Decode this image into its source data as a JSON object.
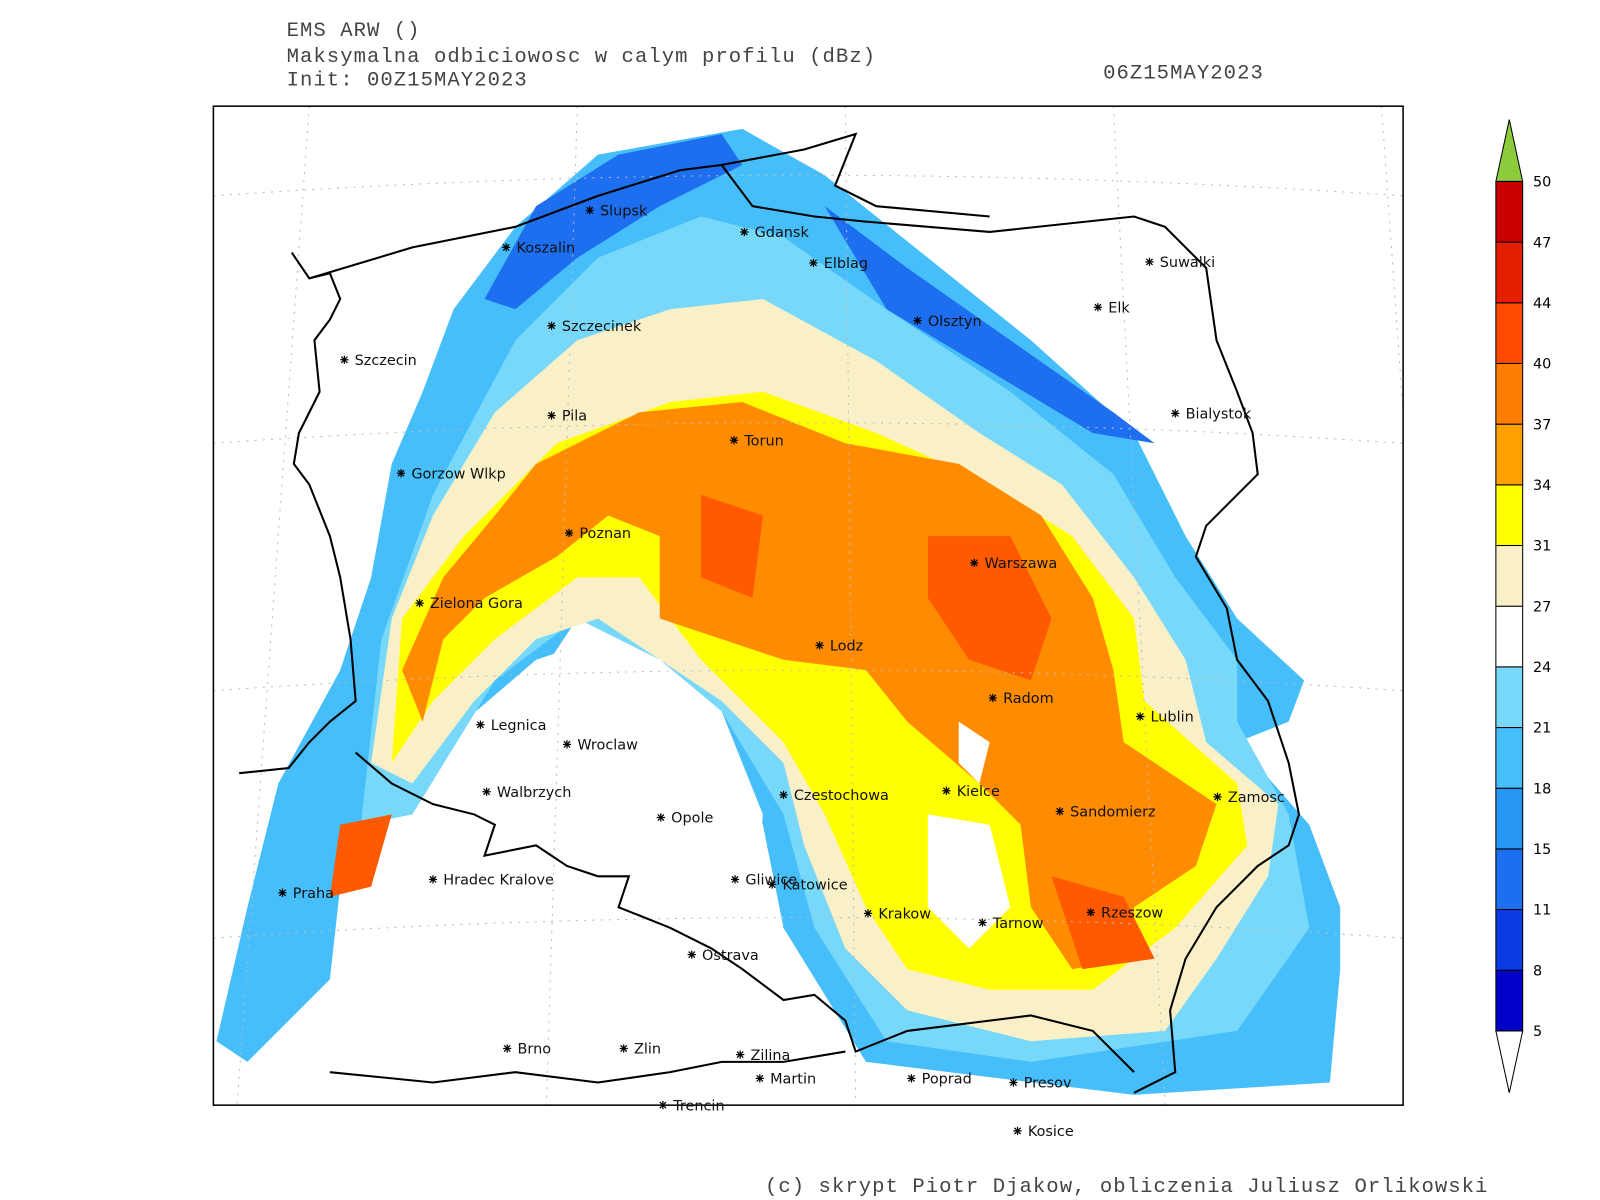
{
  "header": {
    "model": "EMS ARW ()",
    "field": "Maksymalna odbiciowosc w calym profilu (dBz)",
    "init": "Init: 00Z15MAY2023",
    "valid": "06Z15MAY2023"
  },
  "cities": [
    "Slupsk",
    "Koszalin",
    "Gdansk",
    "Elblag",
    "Suwalki",
    "Elk",
    "Olsztyn",
    "Szczecinek",
    "Szczecin",
    "Bialystok",
    "Pila",
    "Torun",
    "Gorzow Wlkp",
    "Poznan",
    "Warszawa",
    "Zielona Gora",
    "Lodz",
    "Radom",
    "Lublin",
    "Legnica",
    "Wroclaw",
    "Walbrzych",
    "Czestochowa",
    "Kielce",
    "Zamosc",
    "Sandomierz",
    "Opole",
    "Praha",
    "Hradec Kralove",
    "Gliwice",
    "Katowice",
    "Krakow",
    "Tarnow",
    "Rzeszow",
    "Ostrava",
    "Brno",
    "Zlin",
    "Zilina",
    "Martin",
    "Poprad",
    "Presov",
    "Trencin",
    "Kosice"
  ],
  "colorbar": {
    "levels": [
      5,
      8,
      11,
      15,
      18,
      21,
      24,
      27,
      31,
      34,
      37,
      40,
      44,
      47,
      50
    ],
    "colors": [
      "#0000c8",
      "#0a3ce6",
      "#1e6ef0",
      "#2896f5",
      "#46befa",
      "#78d8fa",
      "#ffffff",
      "#faf0c8",
      "#ffff00",
      "#ffa000",
      "#ff7d00",
      "#ff4b00",
      "#e61e00",
      "#c80000"
    ],
    "above_color": "#8ccc3c",
    "below_color": "#ffffff"
  },
  "footer": "(c) skrypt Piotr Djakow, obliczenia Juliusz Orlikowski"
}
